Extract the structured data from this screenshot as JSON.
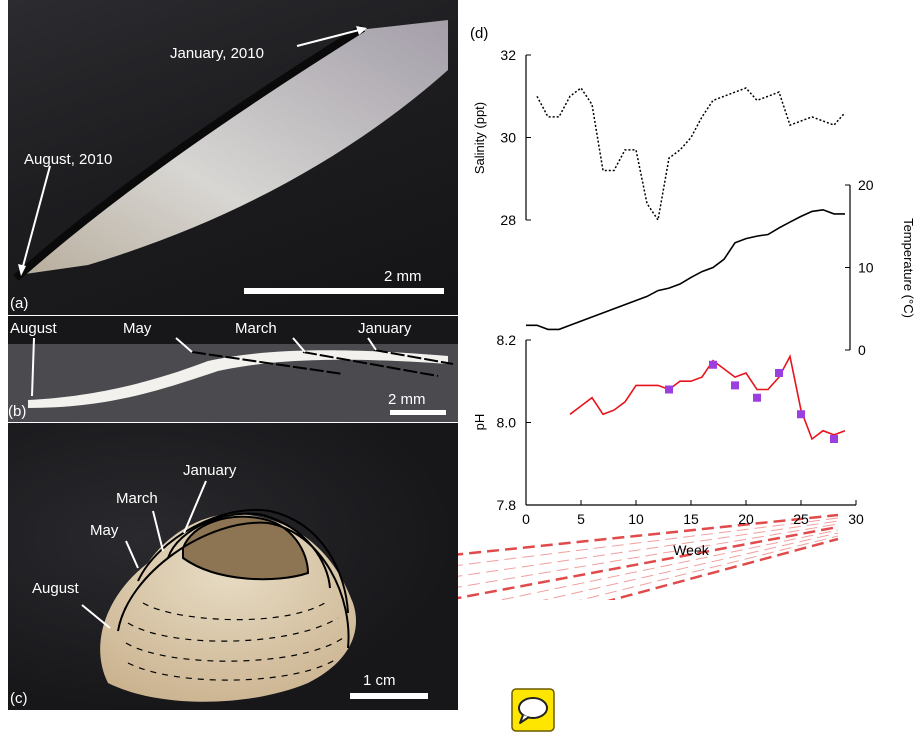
{
  "panel_a": {
    "label": "(a)",
    "annotations": [
      "January, 2010",
      "August, 2010"
    ],
    "scale_bar": "2 mm"
  },
  "panel_b": {
    "label": "(b)",
    "annotations": [
      "August",
      "May",
      "March",
      "January"
    ],
    "scale_bar": "2 mm"
  },
  "panel_c": {
    "label": "(c)",
    "annotations": [
      "January",
      "March",
      "May",
      "August"
    ],
    "scale_bar": "1 cm"
  },
  "panel_d": {
    "label": "(d)"
  },
  "icons": {
    "chat": "speech-bubble-icon",
    "chat_color": "#ffe600"
  },
  "chart_data": [
    {
      "type": "line",
      "ylabel": "Salinity (ppt)",
      "ylim": [
        28,
        32
      ],
      "yticks": [
        28,
        30,
        32
      ],
      "line_style": "dotted",
      "color": "#000000",
      "x": [
        1,
        2,
        3,
        4,
        5,
        6,
        7,
        8,
        9,
        10,
        11,
        12,
        13,
        14,
        15,
        16,
        17,
        18,
        19,
        20,
        21,
        22,
        23,
        24,
        25,
        26,
        27,
        28,
        29
      ],
      "values": [
        31.0,
        30.5,
        30.5,
        31.0,
        31.2,
        30.8,
        29.2,
        29.2,
        29.7,
        29.7,
        28.4,
        28.0,
        29.5,
        29.7,
        30.0,
        30.5,
        30.9,
        31.0,
        31.1,
        31.2,
        30.9,
        31.0,
        31.1,
        30.3,
        30.4,
        30.5,
        30.4,
        30.3,
        30.6
      ]
    },
    {
      "type": "line",
      "ylabel": "Temperature (°C)",
      "ylim": [
        0,
        20
      ],
      "yticks": [
        0,
        10,
        20
      ],
      "color": "#000000",
      "x": [
        0,
        1,
        2,
        3,
        4,
        5,
        6,
        7,
        8,
        9,
        10,
        11,
        12,
        13,
        14,
        15,
        16,
        17,
        18,
        19,
        20,
        21,
        22,
        23,
        24,
        25,
        26,
        27,
        28,
        29
      ],
      "values": [
        3,
        3,
        2.5,
        2.5,
        3,
        3.5,
        4,
        4.5,
        5,
        5.5,
        6,
        6.5,
        7.2,
        7.5,
        8,
        8.8,
        9.5,
        10,
        11,
        13,
        13.5,
        13.8,
        14,
        14.8,
        15.5,
        16.2,
        16.8,
        17,
        16.5,
        16.5
      ]
    },
    {
      "type": "line",
      "ylabel": "pH",
      "xlabel": "Week",
      "xlim": [
        0,
        30
      ],
      "xticks": [
        0,
        5,
        10,
        15,
        20,
        25,
        30
      ],
      "ylim": [
        7.8,
        8.2
      ],
      "yticks": [
        7.8,
        8.0,
        8.2
      ],
      "color": "#e8141c",
      "x": [
        4,
        5,
        6,
        7,
        8,
        9,
        10,
        11,
        12,
        13,
        14,
        15,
        16,
        17,
        18,
        19,
        20,
        21,
        22,
        23,
        24,
        25,
        26,
        27,
        28,
        29
      ],
      "values": [
        8.02,
        8.04,
        8.06,
        8.02,
        8.03,
        8.05,
        8.09,
        8.09,
        8.09,
        8.08,
        8.1,
        8.1,
        8.11,
        8.15,
        8.13,
        8.11,
        8.12,
        8.08,
        8.08,
        8.11,
        8.16,
        8.03,
        7.96,
        7.98,
        7.97,
        7.98
      ],
      "markers": {
        "color": "#9b3fe0",
        "x": [
          13,
          17,
          19,
          21,
          23,
          25,
          28
        ],
        "values": [
          8.08,
          8.14,
          8.09,
          8.06,
          8.12,
          8.02,
          7.96
        ]
      }
    }
  ]
}
